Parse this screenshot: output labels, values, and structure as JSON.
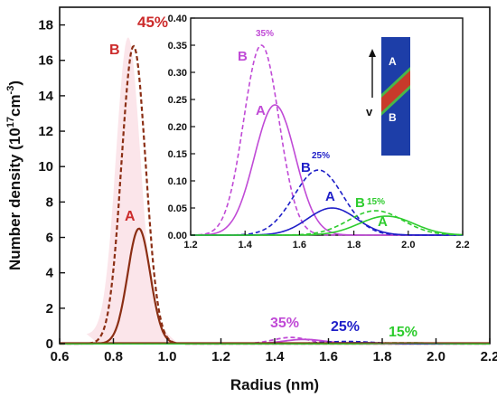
{
  "chart_data": [
    {
      "type": "line",
      "xlabel": "Radius (nm)",
      "ylabel_main": "Number density (10",
      "ylabel_sup": "17",
      "ylabel_unit": "cm",
      "ylabel_sup2": "-3",
      "ylabel_close": ")",
      "xlim": [
        0.6,
        2.2
      ],
      "ylim": [
        0,
        19
      ],
      "xticks": [
        "0.6",
        "0.8",
        "1.0",
        "1.2",
        "1.4",
        "1.6",
        "1.8",
        "2.0",
        "2.2"
      ],
      "yticks": [
        "0",
        "2",
        "4",
        "6",
        "8",
        "10",
        "12",
        "14",
        "16",
        "18"
      ],
      "series": [
        {
          "color": "#8b2e14",
          "dashed": true,
          "mu": 0.875,
          "sigma": 0.045,
          "amp": 16.8
        },
        {
          "color": "#8b2e14",
          "dashed": false,
          "mu": 0.895,
          "sigma": 0.042,
          "amp": 6.5
        },
        {
          "color": "#c04ad6",
          "dashed": true,
          "mu": 1.46,
          "sigma": 0.065,
          "amp": 0.35
        },
        {
          "color": "#c04ad6",
          "dashed": false,
          "mu": 1.51,
          "sigma": 0.075,
          "amp": 0.24
        },
        {
          "color": "#1f1fc8",
          "dashed": true,
          "mu": 1.67,
          "sigma": 0.09,
          "amp": 0.12
        },
        {
          "color": "#1f1fc8",
          "dashed": false,
          "mu": 1.72,
          "sigma": 0.09,
          "amp": 0.05
        },
        {
          "color": "#2ecc2e",
          "dashed": true,
          "mu": 1.88,
          "sigma": 0.1,
          "amp": 0.045
        },
        {
          "color": "#2ecc2e",
          "dashed": false,
          "mu": 1.92,
          "sigma": 0.1,
          "amp": 0.035
        }
      ],
      "annotations": [
        {
          "text": "45%",
          "color": "#cc2b2b"
        },
        {
          "text": "B",
          "color": "#cc2b2b"
        },
        {
          "text": "A",
          "color": "#cc2b2b"
        },
        {
          "text": "35%",
          "color": "#c04ad6"
        },
        {
          "text": "25%",
          "color": "#1f1fc8"
        },
        {
          "text": "15%",
          "color": "#2ecc2e"
        }
      ]
    },
    {
      "type": "line",
      "xlim": [
        1.2,
        2.2
      ],
      "ylim": [
        0,
        0.4
      ],
      "xticks": [
        "1.2",
        "1.4",
        "1.6",
        "1.8",
        "2.0",
        "2.2"
      ],
      "yticks": [
        "0.00",
        "0.05",
        "0.10",
        "0.15",
        "0.20",
        "0.25",
        "0.30",
        "0.35",
        "0.40"
      ],
      "annotations": [
        {
          "text": "35%",
          "color": "#c04ad6"
        },
        {
          "text": "B",
          "color": "#c04ad6"
        },
        {
          "text": "A",
          "color": "#c04ad6"
        },
        {
          "text": "25%",
          "color": "#1f1fc8"
        },
        {
          "text": "B",
          "color": "#1f1fc8"
        },
        {
          "text": "A",
          "color": "#1f1fc8"
        },
        {
          "text": "B",
          "color": "#2ecc2e"
        },
        {
          "text": "15%",
          "color": "#2ecc2e"
        },
        {
          "text": "A",
          "color": "#2ecc2e"
        }
      ],
      "schematic": {
        "label_top": "A",
        "label_bottom": "B",
        "arrow_label": "v"
      }
    }
  ]
}
